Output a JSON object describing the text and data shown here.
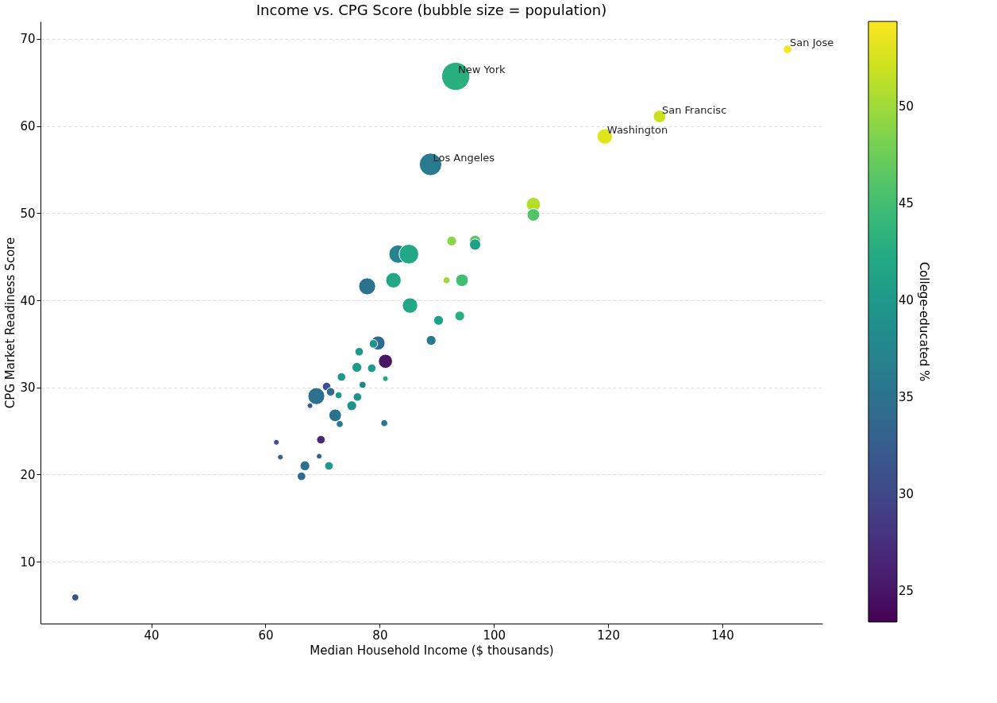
{
  "chart_data": {
    "type": "bubble",
    "title": "Income vs. CPG Score (bubble size = population)",
    "xlabel": "Median Household Income ($ thousands)",
    "ylabel": "CPG Market Readiness Score",
    "clabel": "College-educated %",
    "x": [
      93.3,
      88.9,
      151.4,
      129.0,
      119.4,
      106.9,
      106.9,
      92.6,
      96.7,
      96.7,
      83.2,
      85.1,
      91.7,
      94.4,
      82.4,
      77.8,
      85.3,
      94.0,
      90.3,
      89.0,
      79.7,
      78.9,
      76.4,
      81.0,
      76.0,
      78.6,
      73.3,
      81.0,
      77.0,
      70.7,
      71.4,
      68.9,
      72.8,
      76.1,
      67.8,
      75.1,
      72.2,
      73.0,
      80.8,
      69.7,
      61.9,
      69.4,
      62.6,
      66.9,
      71.1,
      66.3,
      26.7
    ],
    "values": [
      65.7,
      55.6,
      68.8,
      61.1,
      58.8,
      51.0,
      49.8,
      46.8,
      46.8,
      46.4,
      45.3,
      45.3,
      42.3,
      42.3,
      42.3,
      41.6,
      39.4,
      38.2,
      37.7,
      35.4,
      35.1,
      35.0,
      34.1,
      33.0,
      32.3,
      32.2,
      31.2,
      31.0,
      30.3,
      30.1,
      29.5,
      29.0,
      29.1,
      28.9,
      27.9,
      27.9,
      26.8,
      25.8,
      25.9,
      24.0,
      23.7,
      22.1,
      22.0,
      21.0,
      21.0,
      19.8,
      5.9
    ],
    "sizes": [
      1.0,
      0.64,
      0.09,
      0.2,
      0.3,
      0.25,
      0.2,
      0.12,
      0.16,
      0.16,
      0.42,
      0.49,
      0.06,
      0.2,
      0.3,
      0.36,
      0.3,
      0.12,
      0.12,
      0.12,
      0.25,
      0.09,
      0.09,
      0.25,
      0.12,
      0.09,
      0.09,
      0.04,
      0.06,
      0.09,
      0.09,
      0.36,
      0.06,
      0.09,
      0.04,
      0.12,
      0.2,
      0.06,
      0.06,
      0.09,
      0.04,
      0.04,
      0.04,
      0.12,
      0.09,
      0.09,
      0.06
    ],
    "cvalues": [
      43,
      36,
      54,
      52,
      53,
      51,
      46,
      49,
      46,
      41,
      37,
      42,
      50,
      45,
      42,
      35,
      42,
      43,
      41,
      36,
      34,
      39,
      40,
      25,
      40,
      40,
      40,
      42,
      37,
      31,
      34,
      35,
      40,
      39,
      33,
      39,
      35,
      36,
      36,
      27,
      31,
      33,
      33,
      35,
      40,
      34,
      31
    ],
    "xlim": [
      20.6,
      157.5
    ],
    "ylim": [
      2.9,
      72.0
    ],
    "xticks": [
      40,
      60,
      80,
      100,
      120,
      140
    ],
    "yticks": [
      10,
      20,
      30,
      40,
      50,
      60,
      70
    ],
    "clim": [
      23.4,
      54.4
    ],
    "cticks": [
      25,
      30,
      35,
      40,
      45,
      50
    ],
    "grid": "y",
    "annotations": [
      {
        "text": "New York",
        "x": 93.3,
        "y": 65.7
      },
      {
        "text": "Los Angeles",
        "x": 88.9,
        "y": 55.6
      },
      {
        "text": "San Jose",
        "x": 151.4,
        "y": 68.8
      },
      {
        "text": "San Francisc",
        "x": 129.0,
        "y": 61.1
      },
      {
        "text": "Washington",
        "x": 119.4,
        "y": 58.8
      }
    ]
  }
}
